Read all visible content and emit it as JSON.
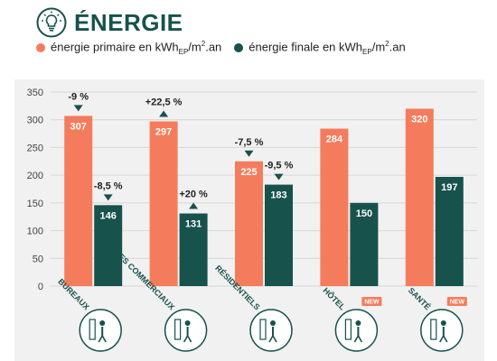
{
  "header": {
    "title": "ÉNERGIE",
    "icon": "lightbulb-icon"
  },
  "legend": {
    "primary": {
      "text": "énergie primaire en kWh",
      "sub": "EP",
      "unit": "/m",
      "sup": "2",
      "tail": ".an",
      "color": "#f47c5c"
    },
    "final": {
      "text": "énergie finale en kWh",
      "sub": "EP",
      "unit": "/m",
      "sup": "2",
      "tail": ".an",
      "color": "#17524c"
    }
  },
  "chart_data": {
    "type": "bar",
    "categories": [
      "BUREAUX",
      "CENTRES COMMERCIAUX",
      "RÉSIDENTIELS",
      "HÔTEL",
      "SANTÉ"
    ],
    "series": [
      {
        "name": "énergie primaire en kWhEP/m².an",
        "values": [
          307,
          297,
          225,
          284,
          320
        ],
        "color": "#f47c5c"
      },
      {
        "name": "énergie finale en kWhEP/m².an",
        "values": [
          146,
          131,
          183,
          150,
          197
        ],
        "color": "#17524c"
      }
    ],
    "ylim": [
      0,
      350
    ],
    "yticks": [
      0,
      50,
      100,
      150,
      200,
      250,
      300,
      350
    ],
    "grid": true,
    "annotations": [
      {
        "category": 0,
        "series": 0,
        "text": "-9 %",
        "direction": "down"
      },
      {
        "category": 0,
        "series": 1,
        "text": "-8,5 %",
        "direction": "down"
      },
      {
        "category": 1,
        "series": 0,
        "text": "+22,5 %",
        "direction": "up"
      },
      {
        "category": 1,
        "series": 1,
        "text": "+20 %",
        "direction": "up"
      },
      {
        "category": 2,
        "series": 0,
        "text": "-7,5 %",
        "direction": "down"
      },
      {
        "category": 2,
        "series": 1,
        "text": "-9,5 %",
        "direction": "down"
      }
    ],
    "badges": [
      {
        "category": 3,
        "text": "NEW"
      },
      {
        "category": 4,
        "text": "NEW"
      }
    ],
    "category_icons": [
      "office-worker-icon",
      "escalator-shopper-icon",
      "residential-walker-icon",
      "hotel-bed-icon",
      "health-cross-icon"
    ]
  }
}
